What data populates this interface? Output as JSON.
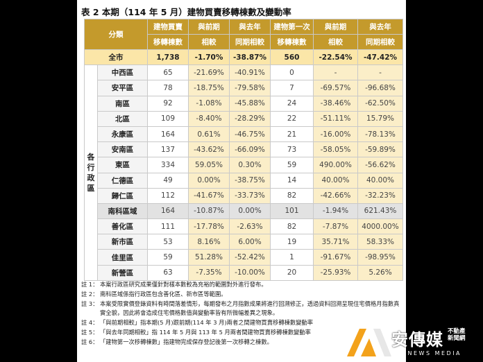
{
  "title": "表 2 本期（114 年 5 月）建物買賣移轉棟數及變動率",
  "headers": {
    "category": "分類",
    "c1": [
      "建物買賣",
      "移轉棟數"
    ],
    "c2": [
      "與前期",
      "相較"
    ],
    "c3": [
      "與去年",
      "同期相較"
    ],
    "c4": [
      "建物第一次",
      "移轉棟數"
    ],
    "c5": [
      "與前期",
      "相較"
    ],
    "c6": [
      "與去年",
      "同期相較"
    ]
  },
  "group_label": [
    "各",
    "行",
    "政",
    "區"
  ],
  "total": {
    "name": "全市",
    "v": [
      "1,738",
      "-1.70%",
      "-38.87%",
      "560",
      "-22.54%",
      "-47.42%"
    ]
  },
  "rows": [
    {
      "name": "中西區",
      "v": [
        "65",
        "-21.69%",
        "-40.91%",
        "0",
        "-",
        "-"
      ]
    },
    {
      "name": "安平區",
      "v": [
        "78",
        "-18.75%",
        "-79.58%",
        "7",
        "-69.57%",
        "-96.68%"
      ]
    },
    {
      "name": "南區",
      "v": [
        "92",
        "-1.08%",
        "-45.88%",
        "24",
        "-38.46%",
        "-62.50%"
      ]
    },
    {
      "name": "北區",
      "v": [
        "109",
        "-8.40%",
        "-28.29%",
        "22",
        "-51.11%",
        "15.79%"
      ]
    },
    {
      "name": "永康區",
      "v": [
        "164",
        "0.61%",
        "-46.75%",
        "21",
        "-16.00%",
        "-78.13%"
      ]
    },
    {
      "name": "安南區",
      "v": [
        "137",
        "-43.62%",
        "-66.09%",
        "73",
        "-58.05%",
        "-59.89%"
      ]
    },
    {
      "name": "東區",
      "v": [
        "334",
        "59.05%",
        "0.30%",
        "59",
        "490.00%",
        "-56.62%"
      ]
    },
    {
      "name": "仁德區",
      "v": [
        "49",
        "0.00%",
        "-38.75%",
        "14",
        "40.00%",
        "40.00%"
      ]
    },
    {
      "name": "歸仁區",
      "v": [
        "112",
        "-41.67%",
        "-33.73%",
        "82",
        "-42.66%",
        "-32.23%"
      ]
    },
    {
      "name": "南科區域",
      "v": [
        "164",
        "-10.87%",
        "0.00%",
        "101",
        "-1.94%",
        "621.43%"
      ]
    },
    {
      "name": "善化區",
      "v": [
        "111",
        "-17.78%",
        "-2.63%",
        "82",
        "-7.87%",
        "4000.00%"
      ]
    },
    {
      "name": "新市區",
      "v": [
        "53",
        "8.16%",
        "6.00%",
        "19",
        "35.71%",
        "58.33%"
      ]
    },
    {
      "name": "佳里區",
      "v": [
        "59",
        "51.28%",
        "-52.42%",
        "1",
        "-91.67%",
        "-98.95%"
      ]
    },
    {
      "name": "新營區",
      "v": [
        "63",
        "-7.35%",
        "-10.00%",
        "20",
        "-25.93%",
        "5.26%"
      ]
    }
  ],
  "notes": [
    {
      "label": "註 1：",
      "text": "本案行政區研究成果僅針對樣本數較為充裕的範圍對外進行發布。"
    },
    {
      "label": "註 2：",
      "text": "南科區域係指行政區包含善化區、新市區等範圍。"
    },
    {
      "label": "註 3：",
      "text": "本案受限實價登錄資料有時間落差情形，每期發布之月指數成果將進行回溯修正，透過資料回溯呈現住宅價格月指數真實全貌，因此將會造成住宅價格數值與變動率皆有所微幅差異之現象。"
    },
    {
      "label": "註 4：",
      "text": "「與前期相較」指本期(5 月)跟前期(114 年 3 月)兩者之間建物買賣移轉棟數變動率"
    },
    {
      "label": "註 5：",
      "text": "「與去年同期相較」指 114 年 5 月與 113 年 5 月兩者間建物買賣移轉棟數變動率"
    },
    {
      "label": "註 6：",
      "text": "「建物第一次移轉棟數」指建物完成保存登記後第一次移轉之棟數。"
    }
  ],
  "logo": {
    "brand": "安傳媒",
    "side": [
      "不動產",
      "新聞網"
    ],
    "sub": "AN NEWS MEDIA"
  }
}
